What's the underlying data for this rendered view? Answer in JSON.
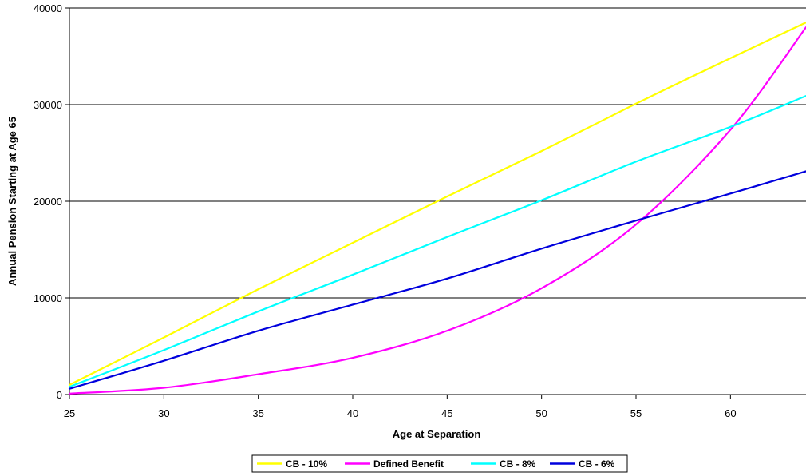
{
  "chart_data": {
    "type": "line",
    "xlabel": "Age at Separation",
    "ylabel": "Annual Pension Starting at Age 65",
    "xlim": [
      25,
      64
    ],
    "ylim": [
      0,
      40000
    ],
    "xticks": [
      "25",
      "30",
      "35",
      "40",
      "45",
      "50",
      "55",
      "60"
    ],
    "yticks": [
      "0",
      "10000",
      "20000",
      "30000",
      "40000"
    ],
    "grid": "horizontal",
    "legend": "bottom",
    "x": [
      25,
      30,
      35,
      40,
      45,
      50,
      55,
      60,
      64
    ],
    "series": [
      {
        "name": "CB - 10%",
        "color": "#ffff00",
        "values": [
          1000,
          5900,
          10900,
          15700,
          20500,
          25200,
          30100,
          34800,
          38500
        ]
      },
      {
        "name": "Defined Benefit",
        "color": "#ff00ff",
        "values": [
          100,
          700,
          2100,
          3800,
          6600,
          11000,
          17600,
          27400,
          38000
        ]
      },
      {
        "name": "CB - 8%",
        "color": "#00ffff",
        "values": [
          800,
          4600,
          8600,
          12400,
          16300,
          20100,
          24100,
          27700,
          30900
        ]
      },
      {
        "name": "CB - 6%",
        "color": "#0000dd",
        "values": [
          600,
          3500,
          6600,
          9300,
          12000,
          15100,
          18000,
          20800,
          23100
        ]
      }
    ]
  }
}
